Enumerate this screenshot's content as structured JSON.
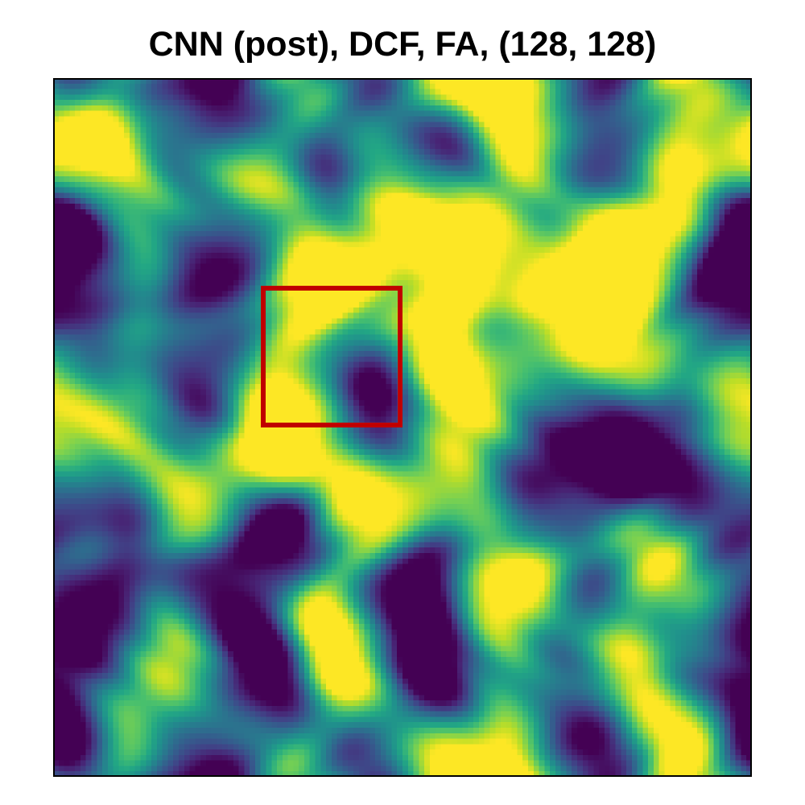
{
  "chart_data": {
    "type": "heatmap",
    "title": "CNN (post), DCF, FA, (128, 128)",
    "grid_shape": [
      128,
      128
    ],
    "colormap": "viridis",
    "value_range": [
      0,
      1
    ],
    "grid": false,
    "axes_ticks": false,
    "highlight_box": {
      "color": "#c00000",
      "col_start": 38,
      "col_end": 64,
      "row_start": 38,
      "row_end": 64
    }
  }
}
